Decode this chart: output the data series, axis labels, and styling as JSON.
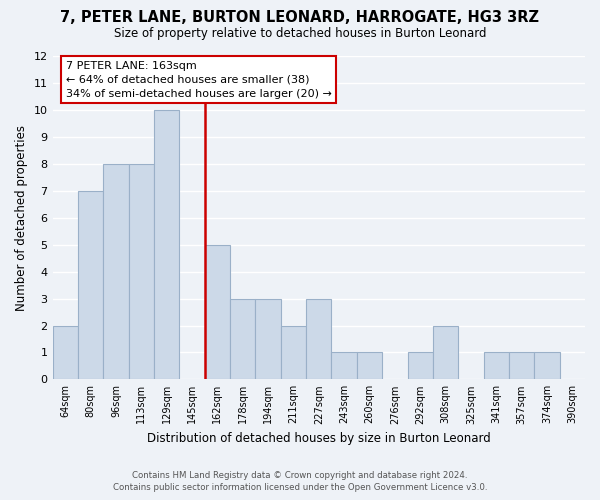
{
  "title": "7, PETER LANE, BURTON LEONARD, HARROGATE, HG3 3RZ",
  "subtitle": "Size of property relative to detached houses in Burton Leonard",
  "xlabel": "Distribution of detached houses by size in Burton Leonard",
  "ylabel": "Number of detached properties",
  "bin_labels": [
    "64sqm",
    "80sqm",
    "96sqm",
    "113sqm",
    "129sqm",
    "145sqm",
    "162sqm",
    "178sqm",
    "194sqm",
    "211sqm",
    "227sqm",
    "243sqm",
    "260sqm",
    "276sqm",
    "292sqm",
    "308sqm",
    "325sqm",
    "341sqm",
    "357sqm",
    "374sqm",
    "390sqm"
  ],
  "bar_heights": [
    2,
    7,
    8,
    8,
    10,
    0,
    5,
    3,
    3,
    2,
    3,
    1,
    1,
    0,
    1,
    2,
    0,
    1,
    1,
    1,
    0
  ],
  "bar_color": "#ccd9e8",
  "bar_edgecolor": "#9ab0c8",
  "vline_color": "#cc0000",
  "annotation_title": "7 PETER LANE: 163sqm",
  "annotation_line1": "← 64% of detached houses are smaller (38)",
  "annotation_line2": "34% of semi-detached houses are larger (20) →",
  "annotation_box_facecolor": "white",
  "annotation_box_edgecolor": "#cc0000",
  "ylim": [
    0,
    12
  ],
  "yticks": [
    0,
    1,
    2,
    3,
    4,
    5,
    6,
    7,
    8,
    9,
    10,
    11,
    12
  ],
  "footer1": "Contains HM Land Registry data © Crown copyright and database right 2024.",
  "footer2": "Contains public sector information licensed under the Open Government Licence v3.0.",
  "background_color": "#eef2f7",
  "grid_color": "#ffffff"
}
